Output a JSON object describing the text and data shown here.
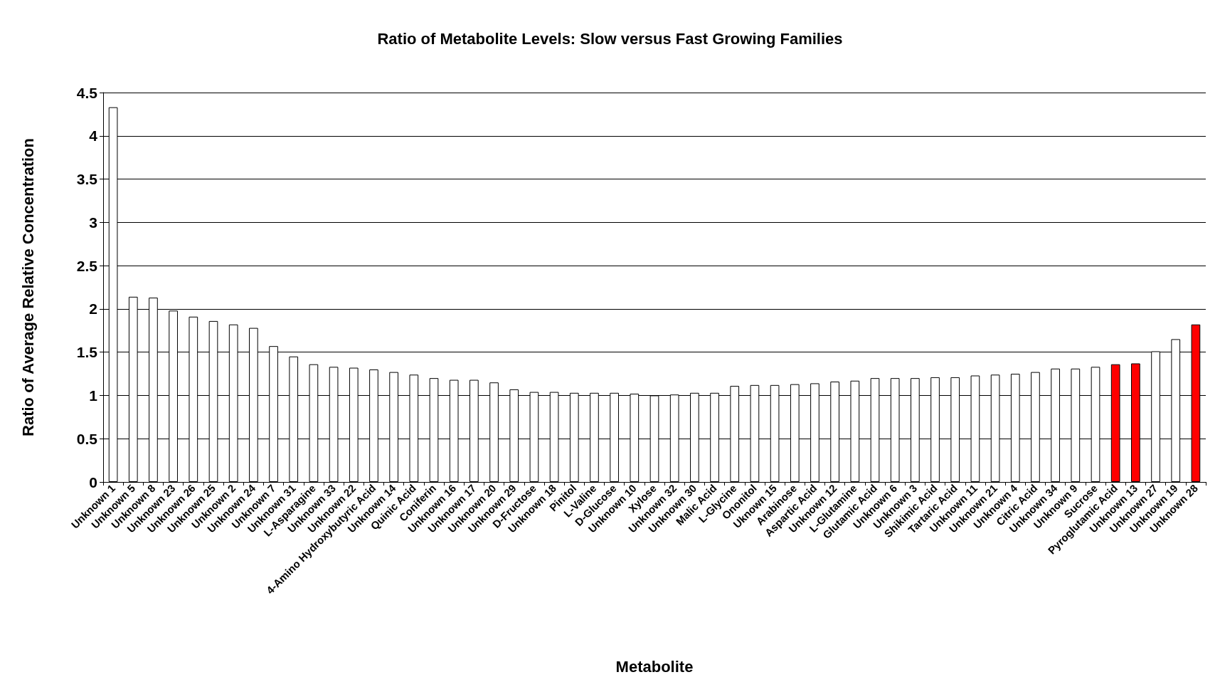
{
  "chart_data": {
    "type": "bar",
    "title": "Ratio of Metabolite Levels: Slow versus Fast Growing Families",
    "xlabel": "Metabolite",
    "ylabel": "Ratio of Average Relative Concentration",
    "categories": [
      "Unknown 1",
      "Unknown 5",
      "Unknown 8",
      "Unknown 23",
      "Unknown 26",
      "Unknown 25",
      "Unknown 2",
      "Unknown 24",
      "Unknown 7",
      "Unknown 31",
      "L-Asparagine",
      "Unknown 33",
      "Unknown 22",
      "4-Amino Hydroxybutyric Acid",
      "Unknown 14",
      "Quinic Acid",
      "Coniferin",
      "Unknown 16",
      "Unknown 17",
      "Unknown 20",
      "Unknown 29",
      "D-Fructose",
      "Unknown 18",
      "Pinitol",
      "L-Valine",
      "D-Glucose",
      "Unknown 10",
      "Xylose",
      "Unknown 32",
      "Unknown 30",
      "Malic Acid",
      "L-Glycine",
      "Ononitol",
      "Uknown 15",
      "Arabinose",
      "Aspartic Acid",
      "Unknown 12",
      "L-Glutamine",
      "Glutamic Acid",
      "Unknown 6",
      "Unknown 3",
      "Shikimic Acid",
      "Tartaric Acid",
      "Unknown 11",
      "Unknown 21",
      "Unknown 4",
      "Citric Acid",
      "Unknown 34",
      "Unknown 9",
      "Sucrose",
      "Pyroglutamic Acid",
      "Unknown 13",
      "Unknown 27",
      "Unknown 19",
      "Unknown 28"
    ],
    "values": [
      4.33,
      2.14,
      2.13,
      1.98,
      1.91,
      1.86,
      1.82,
      1.78,
      1.57,
      1.45,
      1.36,
      1.33,
      1.32,
      1.3,
      1.27,
      1.24,
      1.2,
      1.18,
      1.18,
      1.15,
      1.07,
      1.04,
      1.04,
      1.03,
      1.03,
      1.03,
      1.02,
      1.0,
      1.01,
      1.03,
      1.03,
      1.11,
      1.12,
      1.12,
      1.13,
      1.14,
      1.16,
      1.17,
      1.2,
      1.2,
      1.2,
      1.21,
      1.21,
      1.23,
      1.24,
      1.25,
      1.27,
      1.31,
      1.31,
      1.33,
      1.36,
      1.37,
      1.51,
      1.65,
      1.82
    ],
    "colors": [
      "#ffffff",
      "#ffffff",
      "#ffffff",
      "#ffffff",
      "#ffffff",
      "#ffffff",
      "#ffffff",
      "#ffffff",
      "#ffffff",
      "#ffffff",
      "#ffffff",
      "#ffffff",
      "#ffffff",
      "#ffffff",
      "#ffffff",
      "#ffffff",
      "#ffffff",
      "#ffffff",
      "#ffffff",
      "#ffffff",
      "#ffffff",
      "#ffffff",
      "#ffffff",
      "#ffffff",
      "#ffffff",
      "#ffffff",
      "#ffffff",
      "#ffffff",
      "#ffffff",
      "#ffffff",
      "#ffffff",
      "#ffffff",
      "#ffffff",
      "#ffffff",
      "#ffffff",
      "#ffffff",
      "#ffffff",
      "#ffffff",
      "#ffffff",
      "#ffffff",
      "#ffffff",
      "#ffffff",
      "#ffffff",
      "#ffffff",
      "#ffffff",
      "#ffffff",
      "#ffffff",
      "#ffffff",
      "#ffffff",
      "#ffffff",
      "#ff0000",
      "#ff0000",
      "#ffffff",
      "#ffffff",
      "#ff0000"
    ],
    "ylim": [
      0,
      4.5
    ],
    "yticks": [
      0,
      0.5,
      1,
      1.5,
      2,
      2.5,
      3,
      3.5,
      4,
      4.5
    ],
    "grid": "y"
  }
}
